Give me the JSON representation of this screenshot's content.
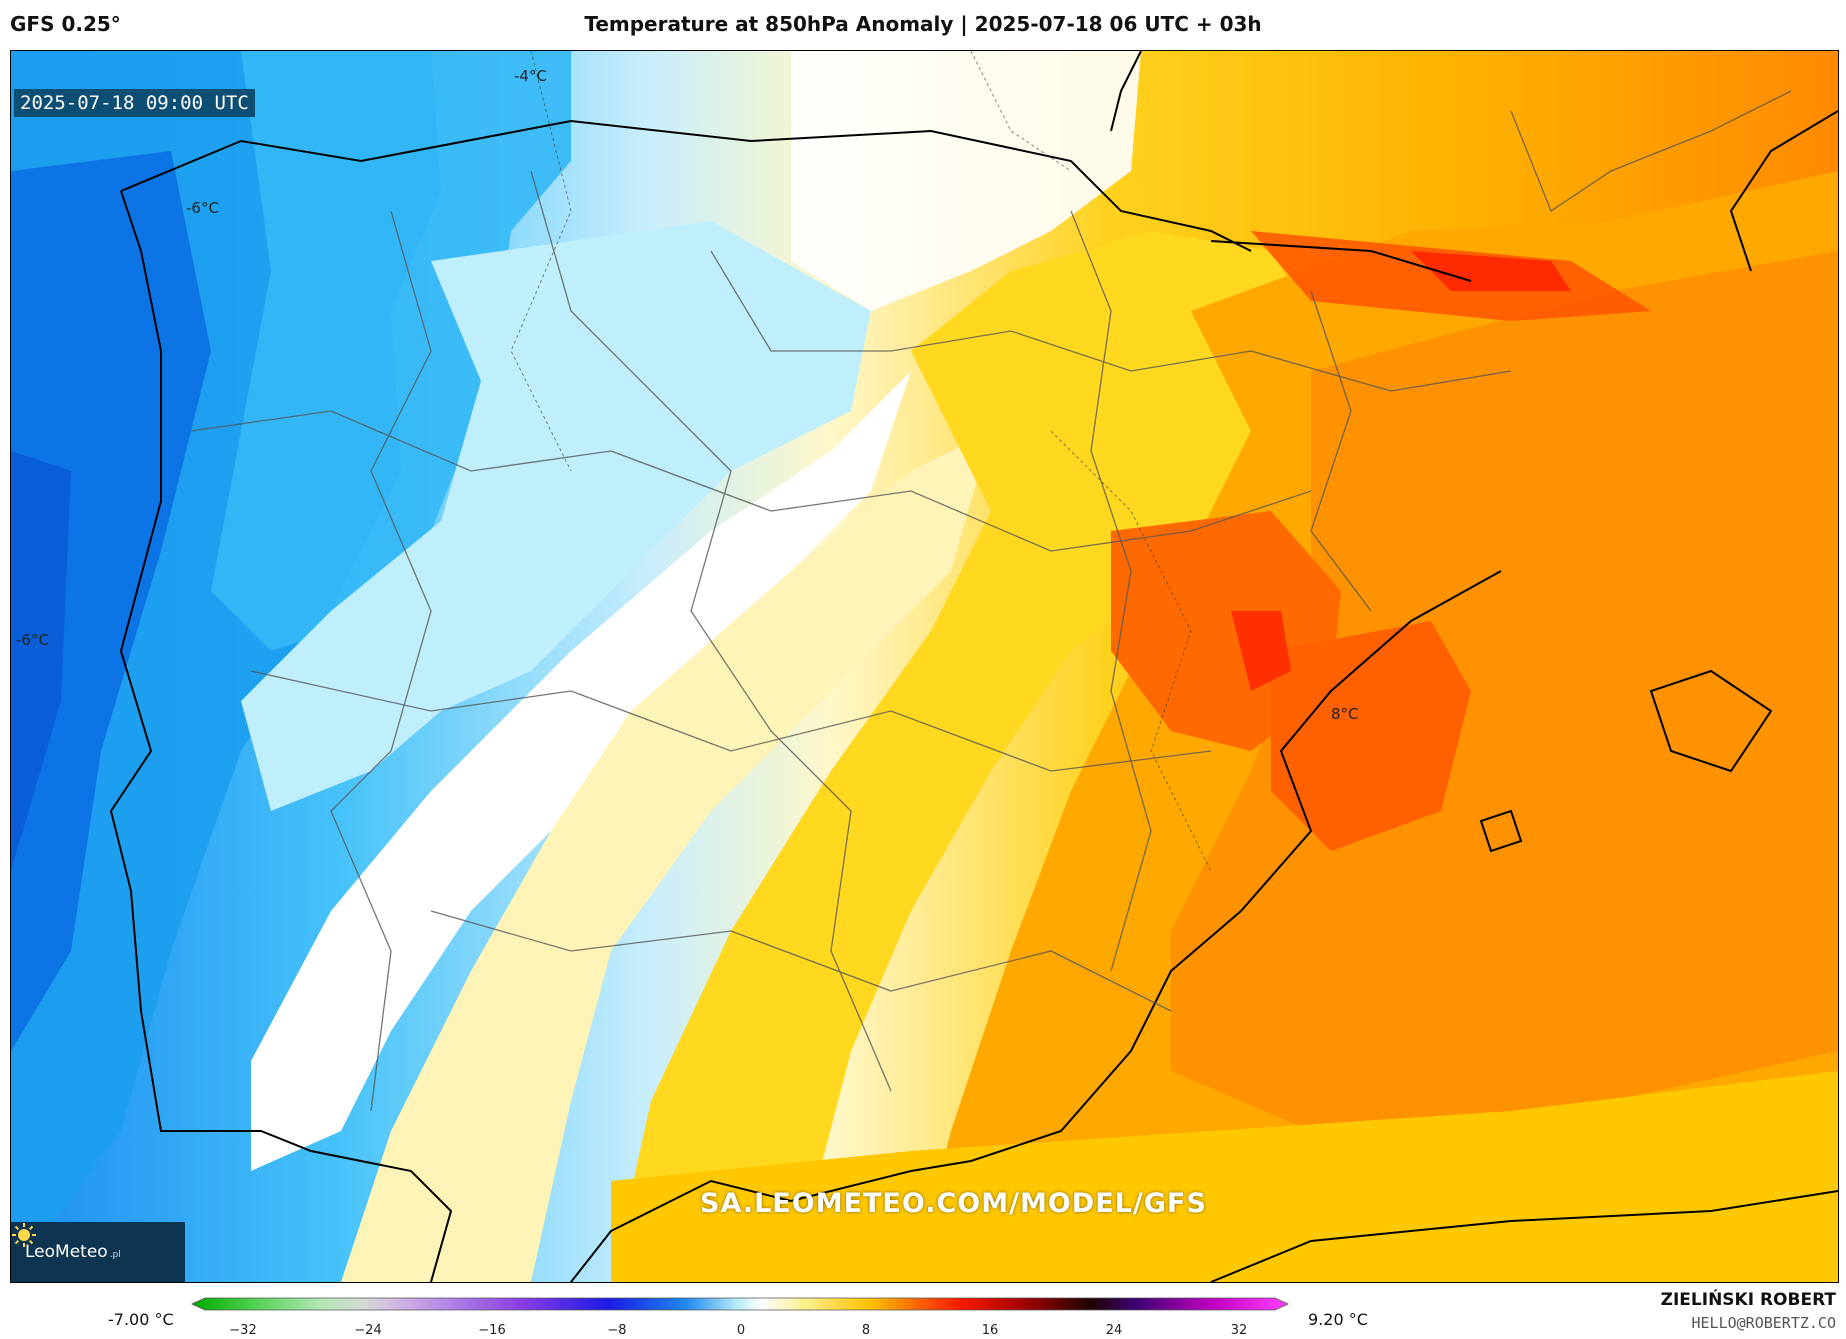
{
  "header": {
    "model": "GFS 0.25°",
    "title": "Temperature at 850hPa Anomaly | 2025-07-18 06 UTC + 03h"
  },
  "map": {
    "valid_time": "2025-07-18 09:00 UTC",
    "contour_labels": [
      {
        "text": "-4°C"
      },
      {
        "text": "-6°C"
      },
      {
        "text": "-6°C"
      },
      {
        "text": "8°C"
      }
    ],
    "watermark": "SA.LEOMETEO.COM/MODEL/GFS",
    "logo": {
      "text": "LeoMeteo",
      "suffix": ".pl",
      "icon": "sun-icon"
    }
  },
  "colorbar": {
    "min_label": "-7.00 °C",
    "max_label": "9.20 °C",
    "ticks": [
      "−32",
      "−24",
      "−16",
      "−8",
      "0",
      "8",
      "16",
      "24",
      "32"
    ]
  },
  "footer": {
    "author": "ZIELIŃSKI ROBERT",
    "email": "HELLO@ROBERTZ.CO"
  }
}
